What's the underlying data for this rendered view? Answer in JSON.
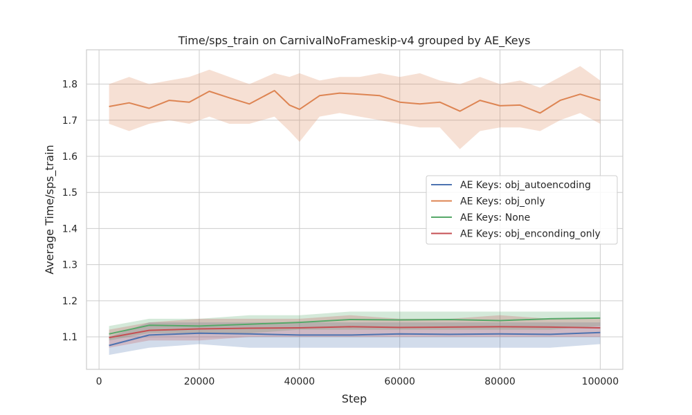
{
  "chart_data": {
    "type": "line",
    "title": "Time/sps_train on CarnivalNoFrameskip-v4 grouped by AE_Keys",
    "xlabel": "Step",
    "ylabel": "Average Time/sps_train",
    "xlim": [
      -2500,
      104500
    ],
    "ylim": [
      1.01,
      1.895
    ],
    "xticks": [
      0,
      20000,
      40000,
      60000,
      80000,
      100000
    ],
    "xtick_labels": [
      "0",
      "20000",
      "40000",
      "60000",
      "80000",
      "100000"
    ],
    "yticks": [
      1.1,
      1.2,
      1.3,
      1.4,
      1.5,
      1.6,
      1.7,
      1.8
    ],
    "ytick_labels": [
      "1.1",
      "1.2",
      "1.3",
      "1.4",
      "1.5",
      "1.6",
      "1.7",
      "1.8"
    ],
    "grid": true,
    "legend_position": "center-right",
    "series": [
      {
        "name": "AE Keys: obj_autoencoding",
        "color": "#4c72b0",
        "x": [
          2000,
          10000,
          20000,
          30000,
          40000,
          50000,
          60000,
          70000,
          80000,
          90000,
          100000
        ],
        "y": [
          1.076,
          1.105,
          1.11,
          1.108,
          1.105,
          1.105,
          1.108,
          1.107,
          1.108,
          1.107,
          1.112
        ],
        "lower": [
          1.05,
          1.07,
          1.08,
          1.07,
          1.07,
          1.07,
          1.07,
          1.07,
          1.07,
          1.07,
          1.08
        ],
        "upper": [
          1.1,
          1.14,
          1.14,
          1.14,
          1.14,
          1.14,
          1.14,
          1.14,
          1.14,
          1.14,
          1.14
        ]
      },
      {
        "name": "AE Keys: obj_only",
        "color": "#dd8452",
        "x": [
          2000,
          6000,
          10000,
          14000,
          18000,
          22000,
          26000,
          30000,
          35000,
          38000,
          40000,
          44000,
          48000,
          52000,
          56000,
          60000,
          64000,
          68000,
          72000,
          76000,
          80000,
          84000,
          88000,
          92000,
          96000,
          100000
        ],
        "y": [
          1.738,
          1.748,
          1.733,
          1.755,
          1.75,
          1.78,
          1.762,
          1.745,
          1.782,
          1.742,
          1.73,
          1.768,
          1.775,
          1.772,
          1.768,
          1.75,
          1.745,
          1.75,
          1.725,
          1.755,
          1.74,
          1.742,
          1.72,
          1.755,
          1.772,
          1.755
        ],
        "lower": [
          1.69,
          1.67,
          1.69,
          1.7,
          1.69,
          1.71,
          1.69,
          1.69,
          1.71,
          1.67,
          1.64,
          1.71,
          1.72,
          1.71,
          1.7,
          1.69,
          1.68,
          1.68,
          1.62,
          1.67,
          1.68,
          1.68,
          1.67,
          1.7,
          1.72,
          1.69
        ],
        "upper": [
          1.8,
          1.82,
          1.8,
          1.81,
          1.82,
          1.84,
          1.82,
          1.8,
          1.83,
          1.82,
          1.83,
          1.81,
          1.82,
          1.82,
          1.83,
          1.82,
          1.83,
          1.81,
          1.8,
          1.82,
          1.8,
          1.81,
          1.79,
          1.82,
          1.85,
          1.81
        ]
      },
      {
        "name": "AE Keys: None",
        "color": "#55a868",
        "x": [
          2000,
          10000,
          20000,
          30000,
          40000,
          50000,
          60000,
          70000,
          80000,
          90000,
          100000
        ],
        "y": [
          1.108,
          1.132,
          1.13,
          1.135,
          1.14,
          1.148,
          1.147,
          1.148,
          1.145,
          1.15,
          1.152
        ],
        "lower": [
          1.09,
          1.11,
          1.11,
          1.11,
          1.12,
          1.12,
          1.12,
          1.12,
          1.12,
          1.12,
          1.13
        ],
        "upper": [
          1.13,
          1.15,
          1.15,
          1.16,
          1.16,
          1.17,
          1.17,
          1.17,
          1.17,
          1.17,
          1.17
        ]
      },
      {
        "name": "AE Keys: obj_enconding_only",
        "color": "#c44e52",
        "x": [
          2000,
          10000,
          20000,
          30000,
          40000,
          50000,
          60000,
          70000,
          80000,
          90000,
          100000
        ],
        "y": [
          1.098,
          1.118,
          1.122,
          1.124,
          1.125,
          1.128,
          1.126,
          1.127,
          1.128,
          1.127,
          1.125
        ],
        "lower": [
          1.07,
          1.09,
          1.09,
          1.1,
          1.1,
          1.1,
          1.1,
          1.1,
          1.1,
          1.1,
          1.1
        ],
        "upper": [
          1.12,
          1.14,
          1.15,
          1.15,
          1.15,
          1.16,
          1.15,
          1.15,
          1.16,
          1.15,
          1.15
        ]
      }
    ]
  }
}
